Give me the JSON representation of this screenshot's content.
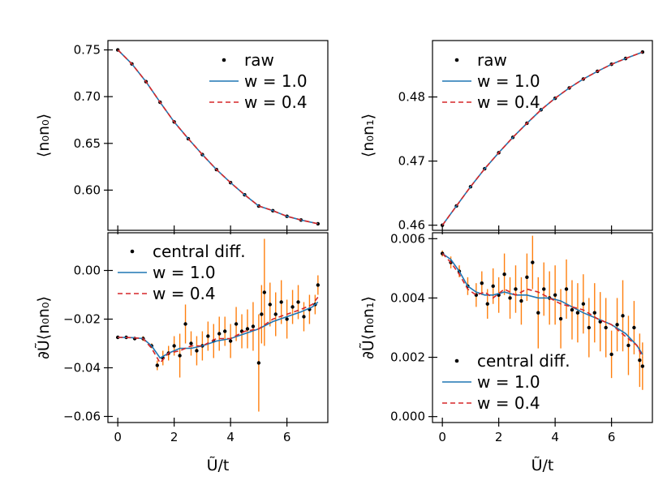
{
  "colors": {
    "raw": "#000000",
    "w1": "#1f77b4",
    "w04": "#d62728",
    "err": "#ff7f0e",
    "axis": "#000000"
  },
  "chart_data": [
    {
      "id": "top-left",
      "type": "line",
      "ylabel": "⟨n₀n₀⟩",
      "xlabel": "",
      "xlim": [
        -0.35,
        7.45
      ],
      "ylim": [
        0.557,
        0.76
      ],
      "xticks": [
        0,
        2,
        4,
        6
      ],
      "xtick_labels": [
        "",
        "",
        "",
        ""
      ],
      "yticks": [
        0.6,
        0.65,
        0.7,
        0.75
      ],
      "ytick_labels": [
        "0.60",
        "0.65",
        "0.70",
        "0.75"
      ],
      "legend": {
        "position": "upper-right",
        "entries": [
          "raw",
          "w = 1.0",
          "w = 0.4"
        ]
      },
      "series": [
        {
          "name": "raw",
          "style": "dots",
          "x": [
            0,
            0.5,
            1,
            1.5,
            2,
            2.5,
            3,
            3.5,
            4,
            4.5,
            5,
            5.5,
            6,
            6.5,
            7.1
          ],
          "y": [
            0.75,
            0.735,
            0.716,
            0.694,
            0.673,
            0.655,
            0.638,
            0.622,
            0.608,
            0.595,
            0.583,
            0.578,
            0.572,
            0.568,
            0.564
          ]
        },
        {
          "name": "w = 1.0",
          "style": "solid",
          "x": [
            0,
            0.5,
            1,
            1.5,
            2,
            2.5,
            3,
            3.5,
            4,
            4.5,
            5,
            5.5,
            6,
            6.5,
            7.1
          ],
          "y": [
            0.75,
            0.735,
            0.716,
            0.694,
            0.673,
            0.655,
            0.638,
            0.622,
            0.608,
            0.595,
            0.583,
            0.578,
            0.572,
            0.568,
            0.564
          ]
        },
        {
          "name": "w = 0.4",
          "style": "dashed",
          "x": [
            0,
            0.5,
            1,
            1.5,
            2,
            2.5,
            3,
            3.5,
            4,
            4.5,
            5,
            5.5,
            6,
            6.5,
            7.1
          ],
          "y": [
            0.75,
            0.735,
            0.716,
            0.694,
            0.673,
            0.655,
            0.638,
            0.622,
            0.608,
            0.595,
            0.583,
            0.578,
            0.572,
            0.568,
            0.564
          ]
        }
      ]
    },
    {
      "id": "top-right",
      "type": "line",
      "ylabel": "⟨n₀n₁⟩",
      "xlabel": "",
      "xlim": [
        -0.35,
        7.45
      ],
      "ylim": [
        0.4592,
        0.4888
      ],
      "xticks": [
        0,
        2,
        4,
        6
      ],
      "xtick_labels": [
        "",
        "",
        "",
        ""
      ],
      "yticks": [
        0.46,
        0.47,
        0.48
      ],
      "ytick_labels": [
        "0.46",
        "0.47",
        "0.48"
      ],
      "legend": {
        "position": "upper-left",
        "entries": [
          "raw",
          "w = 1.0",
          "w = 0.4"
        ]
      },
      "series": [
        {
          "name": "raw",
          "style": "dots",
          "x": [
            0,
            0.5,
            1,
            1.5,
            2,
            2.5,
            3,
            3.5,
            4,
            4.5,
            5,
            5.5,
            6,
            6.5,
            7.1
          ],
          "y": [
            0.46,
            0.463,
            0.466,
            0.4688,
            0.4713,
            0.4737,
            0.4759,
            0.478,
            0.4798,
            0.4814,
            0.4828,
            0.484,
            0.4851,
            0.486,
            0.487
          ]
        },
        {
          "name": "w = 1.0",
          "style": "solid",
          "x": [
            0,
            0.5,
            1,
            1.5,
            2,
            2.5,
            3,
            3.5,
            4,
            4.5,
            5,
            5.5,
            6,
            6.5,
            7.1
          ],
          "y": [
            0.46,
            0.463,
            0.466,
            0.4688,
            0.4713,
            0.4737,
            0.4759,
            0.478,
            0.4798,
            0.4814,
            0.4828,
            0.484,
            0.4851,
            0.486,
            0.487
          ]
        },
        {
          "name": "w = 0.4",
          "style": "dashed",
          "x": [
            0,
            0.5,
            1,
            1.5,
            2,
            2.5,
            3,
            3.5,
            4,
            4.5,
            5,
            5.5,
            6,
            6.5,
            7.1
          ],
          "y": [
            0.46,
            0.463,
            0.466,
            0.4688,
            0.4713,
            0.4737,
            0.4759,
            0.478,
            0.4798,
            0.4814,
            0.4828,
            0.484,
            0.4851,
            0.486,
            0.487
          ]
        }
      ]
    },
    {
      "id": "bottom-left",
      "type": "scatter",
      "ylabel": "∂Ũ⟨n₀n₀⟩",
      "xlabel": "Ũ/t",
      "xlim": [
        -0.35,
        7.45
      ],
      "ylim": [
        -0.0625,
        0.0155
      ],
      "xticks": [
        0,
        2,
        4,
        6
      ],
      "xtick_labels": [
        "0",
        "2",
        "4",
        "6"
      ],
      "yticks": [
        -0.06,
        -0.04,
        -0.02,
        0.0
      ],
      "ytick_labels": [
        "−0.06",
        "−0.04",
        "−0.02",
        "0.00"
      ],
      "legend": {
        "position": "upper-left",
        "entries": [
          "central diff.",
          "w = 1.0",
          "w = 0.4"
        ]
      },
      "series": [
        {
          "name": "central diff.",
          "style": "errorbar",
          "x": [
            0,
            0.3,
            0.6,
            0.9,
            1.2,
            1.4,
            1.6,
            1.8,
            2.0,
            2.2,
            2.4,
            2.6,
            2.8,
            3.0,
            3.2,
            3.4,
            3.6,
            3.8,
            4.0,
            4.2,
            4.4,
            4.6,
            4.8,
            5.0,
            5.1,
            5.2,
            5.4,
            5.6,
            5.8,
            6.0,
            6.2,
            6.4,
            6.6,
            6.8,
            7.0,
            7.1
          ],
          "y": [
            -0.0275,
            -0.0275,
            -0.028,
            -0.028,
            -0.031,
            -0.039,
            -0.036,
            -0.034,
            -0.031,
            -0.035,
            -0.022,
            -0.03,
            -0.033,
            -0.031,
            -0.027,
            -0.029,
            -0.026,
            -0.025,
            -0.029,
            -0.022,
            -0.025,
            -0.024,
            -0.023,
            -0.038,
            -0.018,
            -0.009,
            -0.014,
            -0.018,
            -0.013,
            -0.02,
            -0.015,
            -0.013,
            -0.019,
            -0.016,
            -0.014,
            -0.006
          ],
          "err": [
            0.0005,
            0.0005,
            0.0005,
            0.001,
            0.001,
            0.002,
            0.003,
            0.003,
            0.004,
            0.009,
            0.008,
            0.005,
            0.006,
            0.006,
            0.006,
            0.007,
            0.007,
            0.006,
            0.007,
            0.007,
            0.007,
            0.008,
            0.01,
            0.02,
            0.012,
            0.022,
            0.009,
            0.009,
            0.009,
            0.008,
            0.007,
            0.007,
            0.006,
            0.006,
            0.004,
            0.004
          ]
        },
        {
          "name": "w = 1.0",
          "style": "solid",
          "x": [
            0,
            0.5,
            0.9,
            1.2,
            1.5,
            1.8,
            2.2,
            2.6,
            3.0,
            3.5,
            4.0,
            4.5,
            5.0,
            5.5,
            6.0,
            6.5,
            6.9,
            7.1
          ],
          "y": [
            -0.0275,
            -0.0276,
            -0.028,
            -0.031,
            -0.036,
            -0.034,
            -0.032,
            -0.032,
            -0.031,
            -0.029,
            -0.028,
            -0.026,
            -0.024,
            -0.021,
            -0.019,
            -0.017,
            -0.015,
            -0.013
          ]
        },
        {
          "name": "w = 0.4",
          "style": "dashed",
          "x": [
            0,
            0.5,
            0.9,
            1.2,
            1.5,
            1.8,
            2.2,
            2.6,
            3.0,
            3.5,
            4.0,
            4.5,
            5.0,
            5.5,
            6.0,
            6.5,
            6.9,
            7.1
          ],
          "y": [
            -0.0275,
            -0.0276,
            -0.028,
            -0.032,
            -0.038,
            -0.034,
            -0.033,
            -0.031,
            -0.031,
            -0.028,
            -0.028,
            -0.025,
            -0.024,
            -0.02,
            -0.018,
            -0.016,
            -0.014,
            -0.011
          ]
        }
      ]
    },
    {
      "id": "bottom-right",
      "type": "scatter",
      "ylabel": "∂Ũ⟨n₀n₁⟩",
      "xlabel": "Ũ/t",
      "xlim": [
        -0.35,
        7.45
      ],
      "ylim": [
        -0.0002,
        0.0062
      ],
      "xticks": [
        0,
        2,
        4,
        6
      ],
      "xtick_labels": [
        "0",
        "2",
        "4",
        "6"
      ],
      "yticks": [
        0.0,
        0.002,
        0.004,
        0.006
      ],
      "ytick_labels": [
        "0.000",
        "0.002",
        "0.004",
        "0.006"
      ],
      "legend": {
        "position": "lower-left",
        "entries": [
          "central diff.",
          "w = 1.0",
          "w = 0.4"
        ]
      },
      "series": [
        {
          "name": "central diff.",
          "style": "errorbar",
          "x": [
            0,
            0.3,
            0.6,
            0.9,
            1.2,
            1.4,
            1.6,
            1.8,
            2.0,
            2.2,
            2.4,
            2.6,
            2.8,
            3.0,
            3.2,
            3.4,
            3.6,
            3.8,
            4.0,
            4.2,
            4.4,
            4.6,
            4.8,
            5.0,
            5.2,
            5.4,
            5.6,
            5.8,
            6.0,
            6.2,
            6.4,
            6.6,
            6.8,
            7.0,
            7.1
          ],
          "y": [
            0.0055,
            0.0052,
            0.0049,
            0.0044,
            0.0041,
            0.0045,
            0.0038,
            0.0044,
            0.0041,
            0.0048,
            0.004,
            0.0043,
            0.0039,
            0.0047,
            0.0052,
            0.0035,
            0.0043,
            0.004,
            0.0041,
            0.0033,
            0.0043,
            0.0036,
            0.0035,
            0.0038,
            0.003,
            0.0035,
            0.0032,
            0.003,
            0.0021,
            0.0031,
            0.0034,
            0.0024,
            0.003,
            0.0019,
            0.0017
          ],
          "err": [
            0.0001,
            0.0002,
            0.0002,
            0.0003,
            0.0004,
            0.0004,
            0.0005,
            0.0006,
            0.0006,
            0.0007,
            0.0007,
            0.0008,
            0.0008,
            0.0008,
            0.0009,
            0.0012,
            0.0009,
            0.0009,
            0.001,
            0.001,
            0.001,
            0.001,
            0.001,
            0.001,
            0.001,
            0.001,
            0.001,
            0.001,
            0.0008,
            0.0009,
            0.0012,
            0.001,
            0.0009,
            0.0009,
            0.0008
          ]
        },
        {
          "name": "w = 1.0",
          "style": "solid",
          "x": [
            0,
            0.3,
            0.6,
            0.9,
            1.2,
            1.5,
            1.8,
            2.2,
            2.6,
            3.0,
            3.4,
            3.8,
            4.2,
            4.6,
            5.0,
            5.5,
            6.0,
            6.5,
            6.9,
            7.1
          ],
          "y": [
            0.0055,
            0.0053,
            0.0049,
            0.0044,
            0.0042,
            0.0041,
            0.0041,
            0.0042,
            0.0041,
            0.0041,
            0.004,
            0.004,
            0.0039,
            0.0037,
            0.0035,
            0.0033,
            0.0031,
            0.0028,
            0.0024,
            0.0021
          ]
        },
        {
          "name": "w = 0.4",
          "style": "dashed",
          "x": [
            0,
            0.3,
            0.6,
            0.9,
            1.2,
            1.5,
            1.8,
            2.2,
            2.6,
            3.0,
            3.4,
            3.8,
            4.2,
            4.6,
            5.0,
            5.5,
            6.0,
            6.5,
            6.9,
            7.1
          ],
          "y": [
            0.0055,
            0.0052,
            0.0048,
            0.0043,
            0.0041,
            0.0042,
            0.004,
            0.0043,
            0.0041,
            0.0043,
            0.0042,
            0.004,
            0.0038,
            0.0037,
            0.0036,
            0.0033,
            0.0031,
            0.0027,
            0.0024,
            0.002
          ]
        }
      ]
    }
  ]
}
